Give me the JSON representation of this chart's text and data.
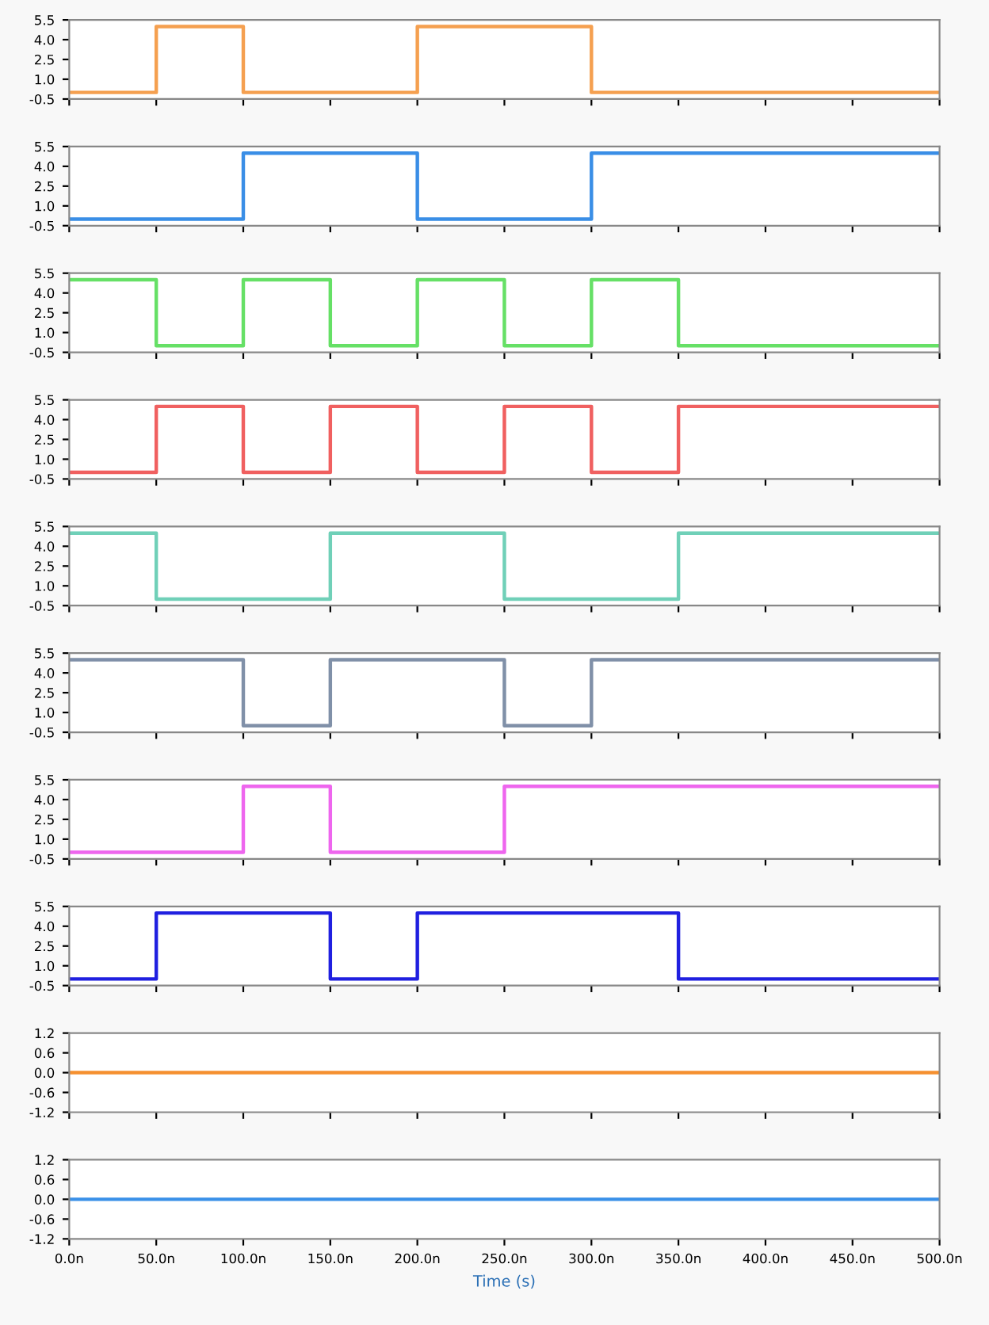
{
  "chart_data": [
    {
      "type": "step",
      "x": [
        0,
        50,
        100,
        200,
        300,
        500
      ],
      "series": [
        {
          "color": "#f5a050",
          "values": [
            0,
            5,
            0,
            5,
            0,
            0
          ]
        }
      ],
      "xlim": [
        0,
        500
      ],
      "ylim": [
        -0.5,
        5.5
      ],
      "yticks": [
        5.5,
        {
          "value": 4,
          "label": "4.0"
        },
        2.5,
        {
          "value": 1,
          "label": "1.0"
        },
        -0.5
      ],
      "tick_labels": "y"
    },
    {
      "type": "step",
      "x": [
        0,
        100,
        200,
        300,
        500
      ],
      "series": [
        {
          "color": "#3a8ee6",
          "values": [
            0,
            5,
            0,
            5,
            5
          ]
        }
      ],
      "xlim": [
        0,
        500
      ],
      "ylim": [
        -0.5,
        5.5
      ],
      "yticks": [
        5.5,
        {
          "value": 4,
          "label": "4.0"
        },
        2.5,
        {
          "value": 1,
          "label": "1.0"
        },
        -0.5
      ],
      "tick_labels": "y"
    },
    {
      "type": "step",
      "x": [
        0,
        50,
        100,
        150,
        200,
        250,
        300,
        350,
        500
      ],
      "series": [
        {
          "color": "#66e066",
          "values": [
            5,
            0,
            5,
            0,
            5,
            0,
            5,
            0,
            0
          ]
        }
      ],
      "xlim": [
        0,
        500
      ],
      "ylim": [
        -0.5,
        5.5
      ],
      "yticks": [
        5.5,
        {
          "value": 4,
          "label": "4.0"
        },
        2.5,
        {
          "value": 1,
          "label": "1.0"
        },
        -0.5
      ],
      "tick_labels": "y"
    },
    {
      "type": "step",
      "x": [
        0,
        50,
        100,
        150,
        200,
        250,
        300,
        350,
        500
      ],
      "series": [
        {
          "color": "#f06060",
          "values": [
            0,
            5,
            0,
            5,
            0,
            5,
            0,
            5,
            5
          ]
        }
      ],
      "xlim": [
        0,
        500
      ],
      "ylim": [
        -0.5,
        5.5
      ],
      "yticks": [
        5.5,
        {
          "value": 4,
          "label": "4.0"
        },
        2.5,
        {
          "value": 1,
          "label": "1.0"
        },
        -0.5
      ],
      "tick_labels": "y"
    },
    {
      "type": "step",
      "x": [
        0,
        50,
        150,
        250,
        350,
        500
      ],
      "series": [
        {
          "color": "#70d0b8",
          "values": [
            5,
            0,
            5,
            0,
            5,
            5
          ]
        }
      ],
      "xlim": [
        0,
        500
      ],
      "ylim": [
        -0.5,
        5.5
      ],
      "yticks": [
        5.5,
        {
          "value": 4,
          "label": "4.0"
        },
        2.5,
        {
          "value": 1,
          "label": "1.0"
        },
        -0.5
      ],
      "tick_labels": "y"
    },
    {
      "type": "step",
      "x": [
        0,
        100,
        150,
        250,
        300,
        500
      ],
      "series": [
        {
          "color": "#8090a8",
          "values": [
            5,
            0,
            5,
            0,
            5,
            5
          ]
        }
      ],
      "xlim": [
        0,
        500
      ],
      "ylim": [
        -0.5,
        5.5
      ],
      "yticks": [
        5.5,
        {
          "value": 4,
          "label": "4.0"
        },
        2.5,
        {
          "value": 1,
          "label": "1.0"
        },
        -0.5
      ],
      "tick_labels": "y"
    },
    {
      "type": "step",
      "x": [
        0,
        100,
        150,
        250,
        500
      ],
      "series": [
        {
          "color": "#ee66ee",
          "values": [
            0,
            5,
            0,
            5,
            5
          ]
        }
      ],
      "xlim": [
        0,
        500
      ],
      "ylim": [
        -0.5,
        5.5
      ],
      "yticks": [
        5.5,
        {
          "value": 4,
          "label": "4.0"
        },
        2.5,
        {
          "value": 1,
          "label": "1.0"
        },
        -0.5
      ],
      "tick_labels": "y"
    },
    {
      "type": "step",
      "x": [
        0,
        50,
        150,
        200,
        350,
        500
      ],
      "series": [
        {
          "color": "#2020e0",
          "values": [
            0,
            5,
            0,
            5,
            0,
            0
          ]
        }
      ],
      "xlim": [
        0,
        500
      ],
      "ylim": [
        -0.5,
        5.5
      ],
      "yticks": [
        5.5,
        {
          "value": 4,
          "label": "4.0"
        },
        2.5,
        {
          "value": 1,
          "label": "1.0"
        },
        -0.5
      ],
      "tick_labels": "y"
    },
    {
      "type": "step",
      "x": [
        0,
        500
      ],
      "series": [
        {
          "color": "#f59030",
          "values": [
            0,
            0
          ]
        }
      ],
      "xlim": [
        0,
        500
      ],
      "ylim": [
        -1.2,
        1.2
      ],
      "yticks": [
        1.2,
        0.6,
        {
          "value": 0,
          "label": "0.0"
        },
        -0.6,
        -1.2
      ],
      "tick_labels": "y"
    },
    {
      "type": "step",
      "x": [
        0,
        500
      ],
      "series": [
        {
          "color": "#3a90e8",
          "values": [
            0,
            0
          ]
        }
      ],
      "xlim": [
        0,
        500
      ],
      "ylim": [
        -1.2,
        1.2
      ],
      "yticks": [
        1.2,
        0.6,
        {
          "value": 0,
          "label": "0.0"
        },
        -0.6,
        -1.2
      ],
      "xticks": [
        {
          "value": 0,
          "label": "0.0n"
        },
        {
          "value": 50,
          "label": "50.0n"
        },
        {
          "value": 100,
          "label": "100.0n"
        },
        {
          "value": 150,
          "label": "150.0n"
        },
        {
          "value": 200,
          "label": "200.0n"
        },
        {
          "value": 250,
          "label": "250.0n"
        },
        {
          "value": 300,
          "label": "300.0n"
        },
        {
          "value": 350,
          "label": "350.0n"
        },
        {
          "value": 400,
          "label": "400.0n"
        },
        {
          "value": 450,
          "label": "450.0n"
        },
        {
          "value": 500,
          "label": "500.0n"
        }
      ],
      "xlabel": "Time (s)"
    }
  ]
}
